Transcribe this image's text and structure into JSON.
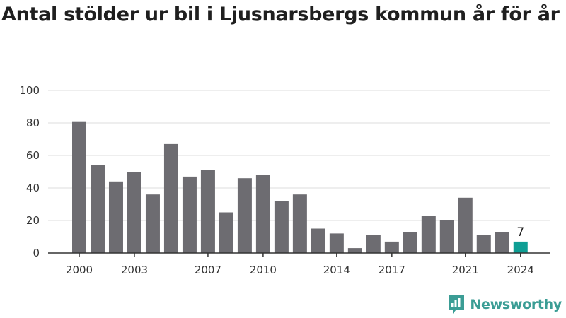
{
  "chart_data": {
    "type": "bar",
    "title": "Antal stölder ur bil i Ljusnarsbergs kommun år för år",
    "xlabel": "",
    "ylabel": "",
    "ylim": [
      0,
      100
    ],
    "yticks": [
      "0",
      "20",
      "40",
      "60",
      "80",
      "100"
    ],
    "categories": [
      "2000",
      "2001",
      "2002",
      "2003",
      "2004",
      "2005",
      "2006",
      "2007",
      "2008",
      "2009",
      "2010",
      "2011",
      "2012",
      "2013",
      "2014",
      "2015",
      "2016",
      "2017",
      "2018",
      "2019",
      "2020",
      "2021",
      "2022",
      "2023",
      "2024"
    ],
    "x_tick_labels": [
      "2000",
      "2003",
      "2007",
      "2010",
      "2014",
      "2017",
      "2021",
      "2024"
    ],
    "values": [
      81,
      54,
      44,
      50,
      36,
      67,
      47,
      51,
      25,
      46,
      48,
      32,
      36,
      15,
      12,
      3,
      11,
      7,
      13,
      23,
      20,
      34,
      11,
      13,
      7
    ],
    "highlight_index": 24,
    "highlight_label": "7",
    "colors": {
      "bar": "#6d6c71",
      "highlight": "#0e9e94",
      "grid": "#dddddd",
      "axis": "#333333"
    },
    "grid": true
  },
  "branding": {
    "logo_text": "Newsworthy",
    "logo_icon": "bar-chart-speech-bubble-icon"
  }
}
